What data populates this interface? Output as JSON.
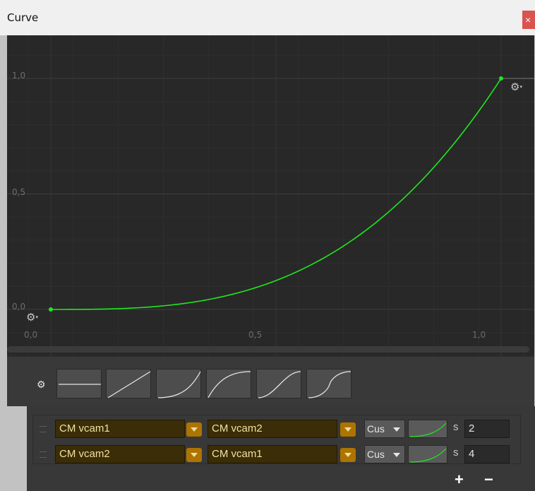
{
  "window": {
    "title": "Curve",
    "close_label": "×"
  },
  "graph": {
    "y_ticks": [
      "1,0",
      "0,5",
      "0,0"
    ],
    "x_ticks": [
      "0,0",
      "0,5",
      "1,0"
    ],
    "key_gear_glyph": "⚙",
    "key_menu_glyph": "▾",
    "curve_color": "#1ee81e",
    "curve": {
      "x_range": [
        0,
        1
      ],
      "y_range": [
        0,
        1
      ],
      "shape": "ease-in (cubic)"
    },
    "keys": [
      {
        "x": 0.0,
        "y": 0.0
      },
      {
        "x": 1.0,
        "y": 1.0
      }
    ]
  },
  "presets": {
    "gear_glyph": "⚙",
    "items": [
      "constant",
      "linear",
      "ease-in",
      "ease-out",
      "ease-in-out",
      "ease-in-out-steep"
    ]
  },
  "blends": {
    "rows": [
      {
        "from": "CM vcam1",
        "to": "CM vcam2",
        "style": "Cus",
        "unit": "s",
        "time": "2"
      },
      {
        "from": "CM vcam2",
        "to": "CM vcam1",
        "style": "Cus",
        "unit": "s",
        "time": "4"
      }
    ],
    "add_label": "+",
    "remove_label": "−"
  }
}
